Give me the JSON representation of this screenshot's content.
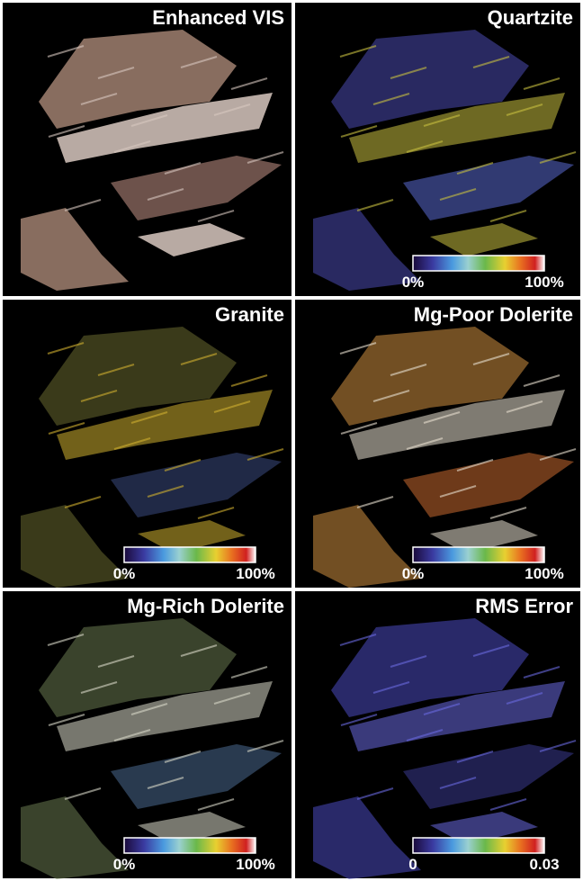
{
  "panels": [
    {
      "title": "Enhanced VIS"
    },
    {
      "title": "Quartzite",
      "colorbar": {
        "min": "0%",
        "max": "100%"
      }
    },
    {
      "title": "Granite",
      "colorbar": {
        "min": "0%",
        "max": "100%"
      }
    },
    {
      "title": "Mg-Poor Dolerite",
      "colorbar": {
        "min": "0%",
        "max": "100%"
      }
    },
    {
      "title": "Mg-Rich Dolerite",
      "colorbar": {
        "min": "0%",
        "max": "100%"
      }
    },
    {
      "title": "RMS Error",
      "colorbar": {
        "min": "0",
        "max": "0.03"
      }
    }
  ]
}
